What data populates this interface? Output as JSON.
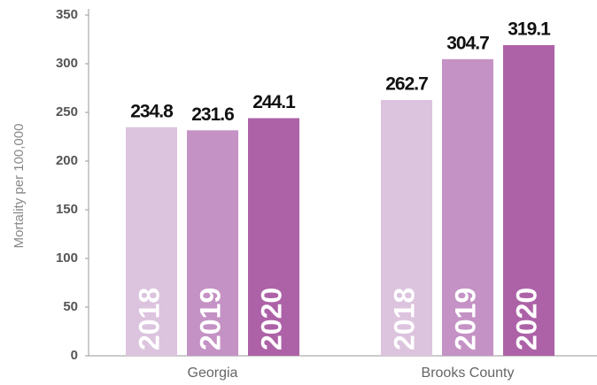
{
  "chart_data": {
    "type": "bar",
    "y_label": "Mortality per 100,000",
    "categories": [
      "Georgia",
      "Brooks County"
    ],
    "series": [
      {
        "name": "2018",
        "color": "#dcc3de",
        "values": [
          234.8,
          262.7
        ]
      },
      {
        "name": "2019",
        "color": "#c492c4",
        "values": [
          231.6,
          304.7
        ]
      },
      {
        "name": "2020",
        "color": "#ad62a7",
        "values": [
          244.1,
          319.1
        ]
      }
    ],
    "ylim": [
      0,
      350
    ],
    "yticks": [
      0,
      50,
      100,
      150,
      200,
      250,
      300,
      350
    ]
  }
}
